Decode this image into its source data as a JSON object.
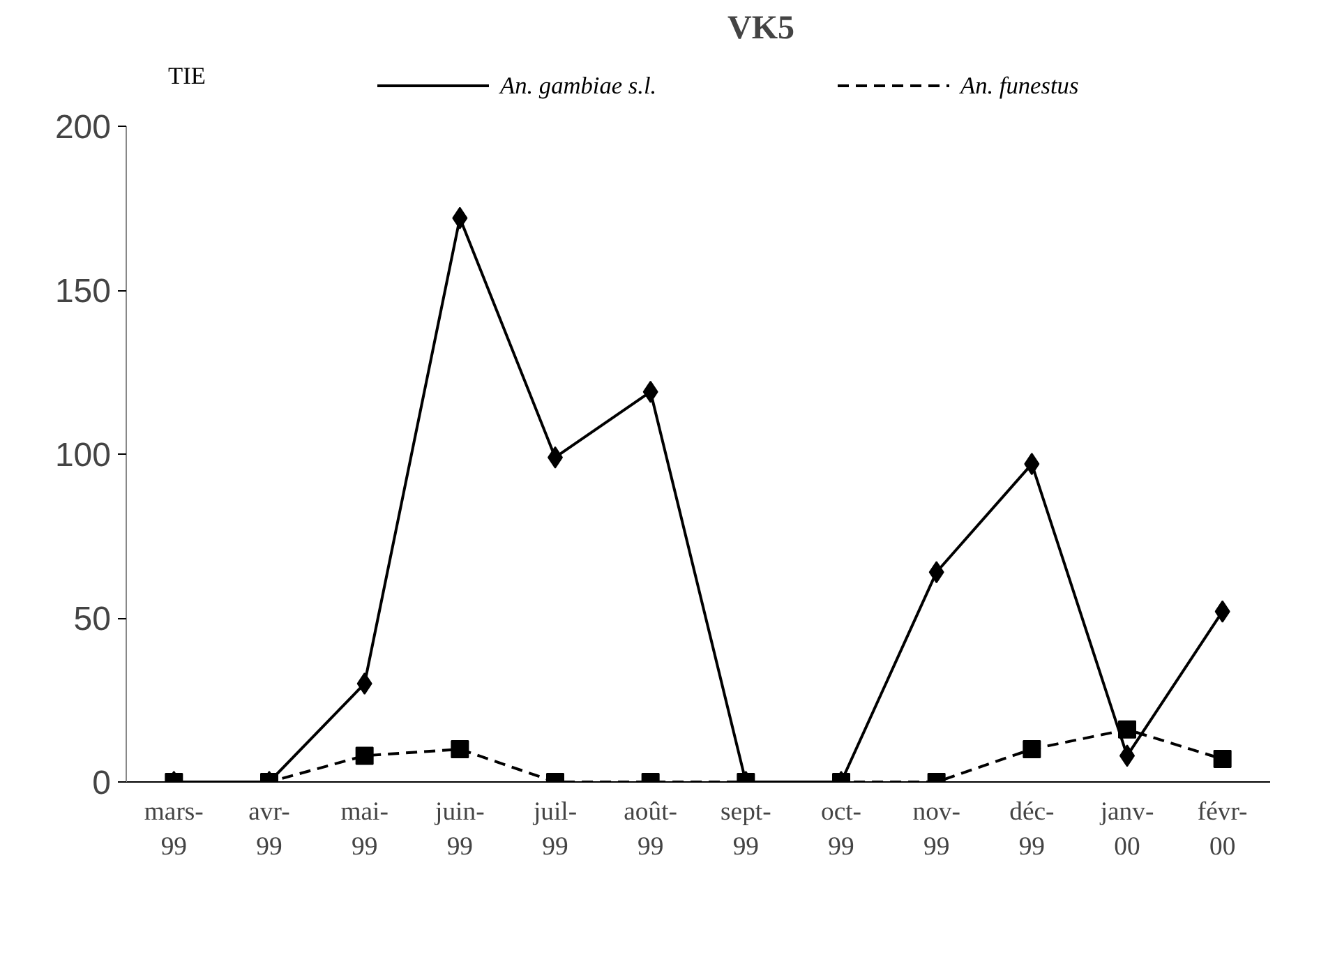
{
  "chart_data": {
    "type": "line",
    "title": "VK5",
    "ylabel": "TIE",
    "categories": [
      "mars-\n99",
      "avr-\n99",
      "mai-\n99",
      "juin-\n99",
      "juil-\n99",
      "août-\n99",
      "sept-\n99",
      "oct-\n99",
      "nov-\n99",
      "déc-\n99",
      "janv-\n00",
      "févr-\n00"
    ],
    "series": [
      {
        "name": "An. gambiae s.l.",
        "color": "#000000",
        "marker": "diamond",
        "line_style": "solid",
        "values": [
          0,
          0,
          30,
          172,
          99,
          119,
          0,
          0,
          64,
          97,
          8,
          52
        ]
      },
      {
        "name": "An. funestus",
        "color": "#000000",
        "marker": "square",
        "line_style": "dashed",
        "values": [
          0,
          0,
          8,
          10,
          0,
          0,
          0,
          0,
          0,
          10,
          16,
          7
        ]
      }
    ],
    "ylim": [
      0,
      200
    ],
    "yticks": [
      0,
      50,
      100,
      150,
      200
    ],
    "grid": false,
    "legend": "top"
  }
}
